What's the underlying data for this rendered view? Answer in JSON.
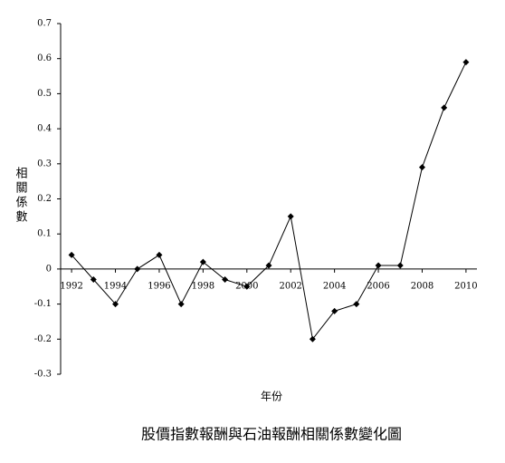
{
  "chart_data": {
    "type": "line",
    "title": "股價指數報酬與石油報酬相關係數變化圖",
    "xlabel": "年份",
    "ylabel": "相關係數",
    "x": [
      1992,
      1993,
      1994,
      1995,
      1996,
      1997,
      1998,
      1999,
      2000,
      2001,
      2002,
      2003,
      2004,
      2005,
      2006,
      2007,
      2008,
      2009,
      2010
    ],
    "series": [
      {
        "color": "#000000",
        "values": [
          0.04,
          -0.03,
          -0.1,
          0.0,
          0.04,
          -0.1,
          0.02,
          -0.03,
          -0.05,
          0.01,
          0.15,
          -0.2,
          -0.12,
          -0.1,
          0.01,
          0.01,
          0.29,
          0.46,
          0.59
        ]
      }
    ],
    "xlim": [
      1991.5,
      2010.5
    ],
    "xticks": [
      1992,
      1994,
      1996,
      1998,
      2000,
      2002,
      2004,
      2006,
      2008,
      2010
    ],
    "ylim": [
      -0.3,
      0.7
    ],
    "yticks": [
      -0.3,
      -0.2,
      -0.1,
      0,
      0.1,
      0.2,
      0.3,
      0.4,
      0.5,
      0.6,
      0.7
    ],
    "grid": false
  }
}
